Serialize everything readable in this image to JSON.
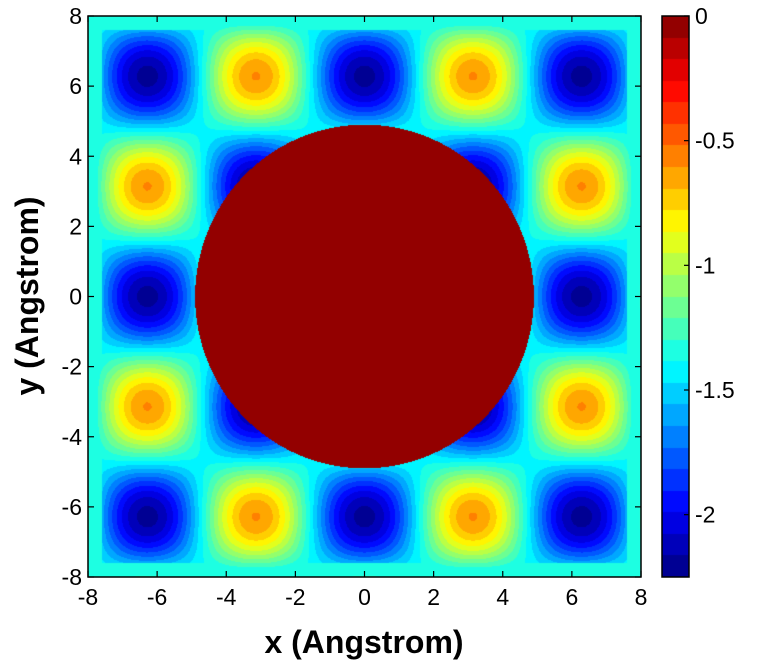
{
  "chart_data": {
    "type": "heatmap",
    "plot_kind": "filled-contour",
    "title": "",
    "xlabel": "x (Angstrom)",
    "ylabel": "y (Angstrom)",
    "xlim": [
      -8,
      8
    ],
    "ylim": [
      -8,
      8
    ],
    "x_ticks": [
      -8,
      -6,
      -4,
      -2,
      0,
      2,
      4,
      6,
      8
    ],
    "y_ticks": [
      -8,
      -6,
      -4,
      -2,
      0,
      2,
      4,
      6,
      8
    ],
    "x_tick_labels": [
      "-8",
      "-6",
      "-4",
      "-2",
      "0",
      "2",
      "4",
      "6",
      "8"
    ],
    "y_tick_labels": [
      "-8",
      "-6",
      "-4",
      "-2",
      "0",
      "2",
      "4",
      "6",
      "8"
    ],
    "colormap": "jet",
    "colorbar": {
      "range": [
        -2.25,
        0
      ],
      "ticks": [
        0,
        -0.5,
        -1,
        -1.5,
        -2
      ],
      "tick_labels": [
        "0",
        "-0.5",
        "-1",
        "-1.5",
        "-2"
      ]
    },
    "features": {
      "lattice_period": 3.14,
      "minima_value": -2.2,
      "maxima_value": -0.6,
      "central_disc_radius": 4.9,
      "central_disc_value": -0.08,
      "central_lobe_value": 0,
      "central_lobe_centers": [
        [
          0,
          3.14
        ],
        [
          0,
          -3.14
        ],
        [
          3.14,
          0
        ],
        [
          -3.14,
          0
        ]
      ]
    }
  }
}
